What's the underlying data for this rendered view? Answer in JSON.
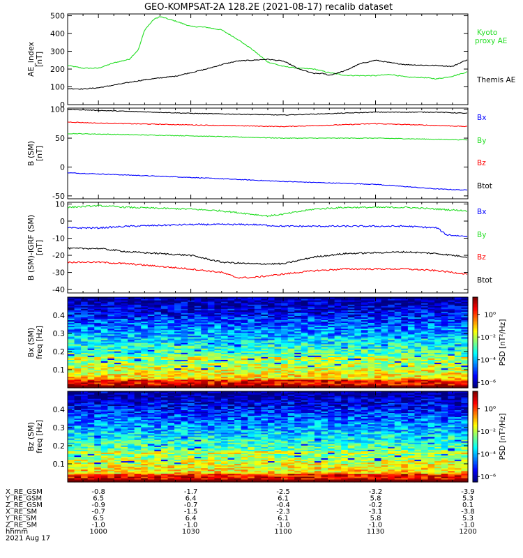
{
  "title": "GEO-KOMPSAT-2A 128.2E (2021-08-17) recalib dataset",
  "chart_data": [
    {
      "type": "line",
      "ylabel": [
        "AE_index",
        "[nT]"
      ],
      "ylim": [
        0,
        510
      ],
      "yticks": [
        "0",
        "100",
        "200",
        "300",
        "400",
        "500"
      ],
      "x_range_hhmm": [
        "0950",
        "1200"
      ],
      "legend_placement": "right",
      "series": [
        {
          "name": "Kyoto proxy AE",
          "legend_lines": [
            "Kyoto",
            "proxy AE"
          ],
          "color": "#22dd22",
          "x": [
            "0950",
            "0955",
            "1000",
            "1005",
            "1010",
            "1013",
            "1015",
            "1018",
            "1020",
            "1025",
            "1030",
            "1035",
            "1040",
            "1045",
            "1050",
            "1055",
            "1100",
            "1105",
            "1110",
            "1115",
            "1120",
            "1125",
            "1130",
            "1135",
            "1140",
            "1145",
            "1150",
            "1155",
            "1200"
          ],
          "values": [
            220,
            205,
            205,
            235,
            255,
            310,
            420,
            480,
            495,
            470,
            440,
            435,
            420,
            370,
            310,
            240,
            215,
            205,
            200,
            180,
            165,
            163,
            163,
            170,
            155,
            153,
            145,
            160,
            185
          ]
        },
        {
          "name": "Themis AE",
          "legend_lines": [
            "Themis AE"
          ],
          "color": "#000000",
          "x": [
            "0950",
            "0955",
            "1000",
            "1005",
            "1010",
            "1015",
            "1020",
            "1025",
            "1030",
            "1035",
            "1040",
            "1045",
            "1050",
            "1055",
            "1100",
            "1103",
            "1105",
            "1108",
            "1110",
            "1113",
            "1115",
            "1120",
            "1125",
            "1130",
            "1135",
            "1140",
            "1145",
            "1150",
            "1155",
            "1200"
          ],
          "values": [
            90,
            88,
            95,
            110,
            125,
            140,
            150,
            160,
            180,
            200,
            225,
            245,
            250,
            255,
            245,
            220,
            200,
            185,
            175,
            175,
            165,
            190,
            230,
            250,
            235,
            225,
            222,
            220,
            215,
            255
          ]
        }
      ]
    },
    {
      "type": "line",
      "ylabel": [
        "B (SM)",
        "[nT]"
      ],
      "ylim": [
        -55,
        102
      ],
      "yticks": [
        "-50",
        "0",
        "50",
        "100"
      ],
      "x_range_hhmm": [
        "0950",
        "1200"
      ],
      "legend_placement": "right",
      "series": [
        {
          "name": "Bx",
          "color": "#0000ff",
          "x": [
            "0950",
            "1000",
            "1030",
            "1100",
            "1130",
            "1150",
            "1200"
          ],
          "values": [
            -10,
            -12,
            -18,
            -25,
            -30,
            -38,
            -40
          ]
        },
        {
          "name": "By",
          "color": "#22dd22",
          "x": [
            "0950",
            "1000",
            "1030",
            "1100",
            "1130",
            "1150",
            "1200"
          ],
          "values": [
            58,
            57,
            54,
            50,
            50,
            48,
            47
          ]
        },
        {
          "name": "Bz",
          "color": "#ff0000",
          "x": [
            "0950",
            "1000",
            "1030",
            "1100",
            "1130",
            "1150",
            "1200"
          ],
          "values": [
            78,
            76,
            73,
            70,
            75,
            72,
            70
          ]
        },
        {
          "name": "Btot",
          "color": "#000000",
          "x": [
            "0950",
            "1000",
            "1030",
            "1100",
            "1130",
            "1150",
            "1200"
          ],
          "values": [
            100,
            98,
            93,
            90,
            95,
            95,
            93
          ]
        }
      ]
    },
    {
      "type": "line",
      "ylabel": [
        "B (SM)-IGRF (SM)",
        "[nT]"
      ],
      "ylim": [
        -42,
        11
      ],
      "yticks": [
        "-40",
        "-30",
        "-20",
        "-10",
        "0",
        "10"
      ],
      "x_range_hhmm": [
        "0950",
        "1200"
      ],
      "legend_placement": "right",
      "series": [
        {
          "name": "Bx",
          "color": "#0000ff",
          "x": [
            "0950",
            "1000",
            "1010",
            "1030",
            "1040",
            "1050",
            "1100",
            "1110",
            "1130",
            "1140",
            "1150",
            "1153",
            "1200"
          ],
          "values": [
            -4,
            -4,
            -3,
            -2,
            -2,
            -2,
            -3,
            -3,
            -3,
            -3,
            -4,
            -8,
            -9
          ]
        },
        {
          "name": "By",
          "color": "#22dd22",
          "x": [
            "0950",
            "1000",
            "1010",
            "1030",
            "1040",
            "1050",
            "1055",
            "1100",
            "1110",
            "1120",
            "1140",
            "1200"
          ],
          "values": [
            8,
            9,
            8,
            7,
            6,
            4,
            3,
            4,
            7,
            8,
            8,
            6
          ]
        },
        {
          "name": "Bz",
          "color": "#ff0000",
          "x": [
            "0950",
            "1000",
            "1010",
            "1030",
            "1040",
            "1045",
            "1050",
            "1100",
            "1110",
            "1120",
            "1140",
            "1150",
            "1200"
          ],
          "values": [
            -24,
            -24,
            -25,
            -28,
            -30,
            -33,
            -33,
            -31,
            -29,
            -28,
            -28,
            -29,
            -31
          ]
        },
        {
          "name": "Btot",
          "color": "#000000",
          "x": [
            "0950",
            "1000",
            "1010",
            "1030",
            "1040",
            "1050",
            "1100",
            "1110",
            "1120",
            "1140",
            "1150",
            "1200"
          ],
          "values": [
            -16,
            -16,
            -18,
            -20,
            -24,
            -25,
            -25,
            -21,
            -19,
            -18,
            -19,
            -21
          ]
        }
      ]
    },
    {
      "type": "heatmap",
      "ylabel": [
        "Bx (SM)",
        "freq [Hz]"
      ],
      "ylim": [
        0,
        0.5
      ],
      "yticks": [
        "0.1",
        "0.2",
        "0.3",
        "0.4"
      ],
      "x_range_hhmm": [
        "0950",
        "1200"
      ],
      "colorbar_label": "PSD [nT²/Hz]",
      "colorbar_ticks": [
        "10⁰",
        "10⁻²",
        "10⁻⁴",
        "10⁻⁶"
      ]
    },
    {
      "type": "heatmap",
      "ylabel": [
        "Bz (SM)",
        "freq [Hz]"
      ],
      "ylim": [
        0,
        0.5
      ],
      "yticks": [
        "0.1",
        "0.2",
        "0.3",
        "0.4"
      ],
      "x_range_hhmm": [
        "0950",
        "1200"
      ],
      "colorbar_label": "PSD [nT²/Hz]",
      "colorbar_ticks": [
        "10⁰",
        "10⁻²",
        "10⁻⁴",
        "10⁻⁶"
      ]
    }
  ],
  "xaxis_table": {
    "ticks_hhmm": [
      "1000",
      "1030",
      "1100",
      "1130",
      "1200"
    ],
    "rows": [
      {
        "label": "X_RE_GSM",
        "values": [
          "-0.8",
          "-1.7",
          "-2.5",
          "-3.2",
          "-3.9"
        ]
      },
      {
        "label": "Y_RE_GSM",
        "values": [
          "6.5",
          "6.4",
          "6.1",
          "5.8",
          "5.3"
        ]
      },
      {
        "label": "Z_RE_GSM",
        "values": [
          "-0.9",
          "-0.7",
          "-0.4",
          "-0.2",
          "0.1"
        ]
      },
      {
        "label": "X_RE_SM",
        "values": [
          "-0.7",
          "-1.5",
          "-2.3",
          "-3.1",
          "-3.8"
        ]
      },
      {
        "label": "Y_RE_SM",
        "values": [
          "6.5",
          "6.4",
          "6.1",
          "5.8",
          "5.3"
        ]
      },
      {
        "label": "Z_RE_SM",
        "values": [
          "-1.0",
          "-1.0",
          "-1.0",
          "-1.0",
          "-1.0"
        ]
      },
      {
        "label": "hhmm",
        "values": [
          "1000",
          "1030",
          "1100",
          "1130",
          "1200"
        ]
      }
    ],
    "date": "2021 Aug 17"
  },
  "colors": {
    "kyoto": "#22dd22",
    "themis": "#000000",
    "bx": "#0000ff",
    "by": "#22dd22",
    "bz": "#ff0000",
    "btot": "#000000"
  }
}
